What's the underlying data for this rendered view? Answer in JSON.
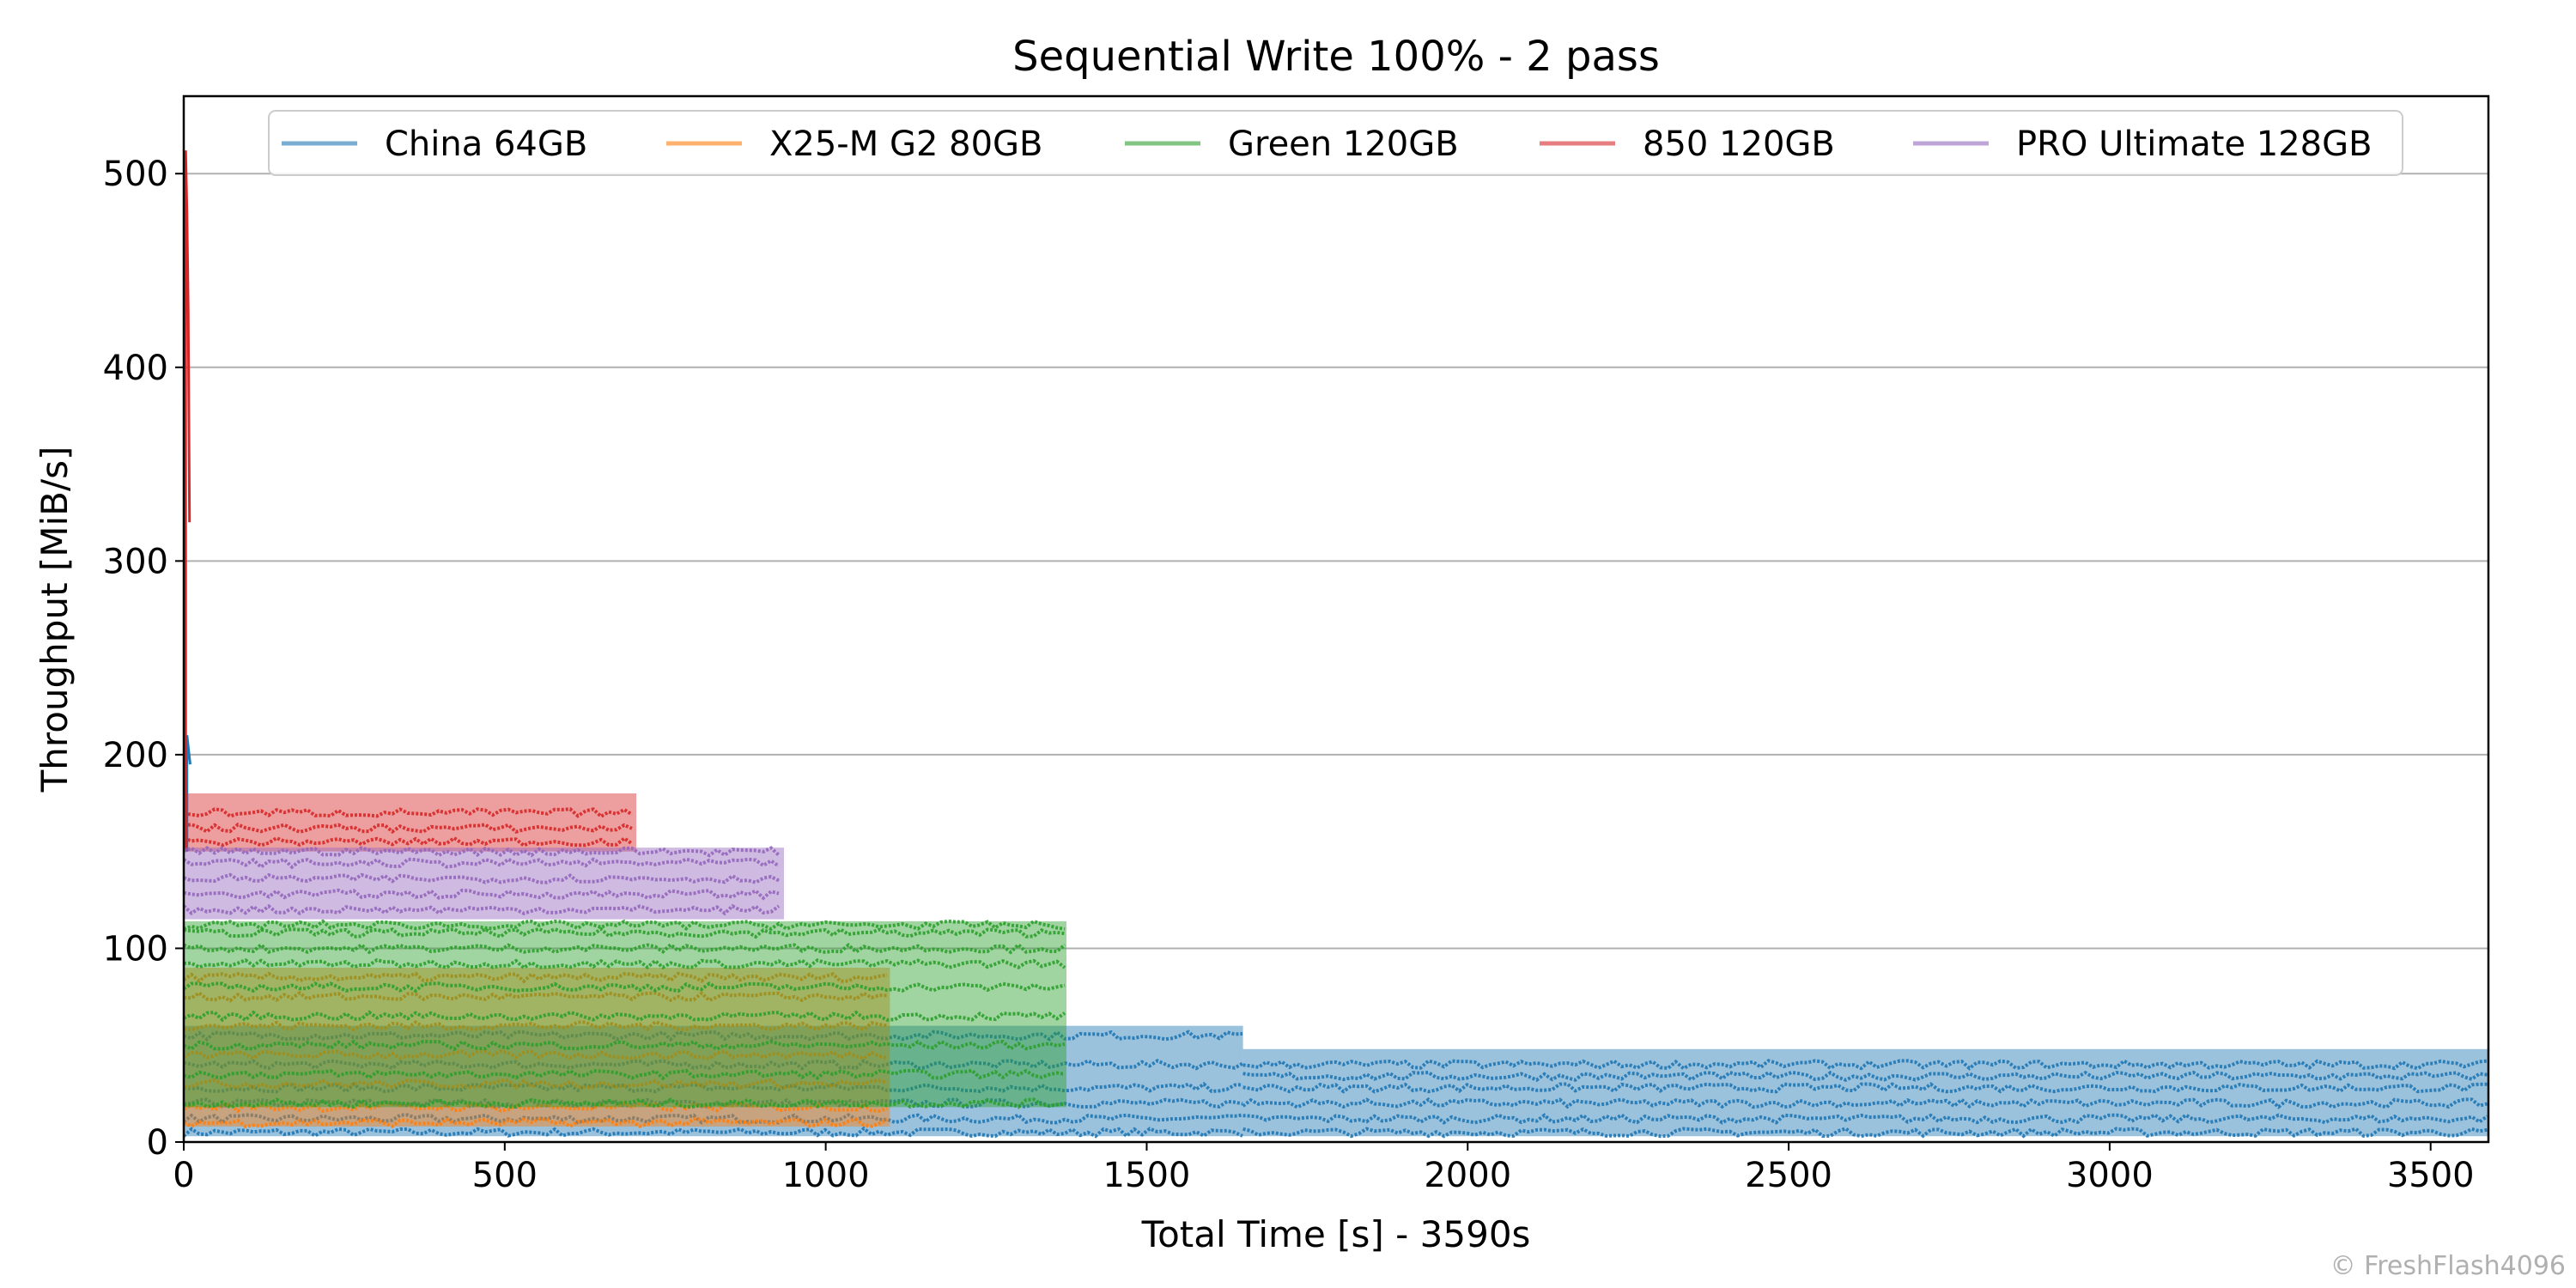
{
  "chart_data": {
    "type": "scatter",
    "title": "Sequential Write 100% - 2 pass",
    "xlabel": "Total Time [s] - 3590s",
    "ylabel": "Throughput [MiB/s]",
    "xlim": [
      0,
      3590
    ],
    "ylim": [
      0,
      540
    ],
    "xticks": [
      0,
      500,
      1000,
      1500,
      2000,
      2500,
      3000,
      3500
    ],
    "yticks": [
      0,
      100,
      200,
      300,
      400,
      500
    ],
    "grid": "horizontal",
    "legend_position": "top",
    "watermark": "© FreshFlash4096",
    "series": [
      {
        "name": "China 64GB",
        "color": "#1f77b4",
        "segments": [
          {
            "x_start": 0,
            "x_end": 1650,
            "bands": [
              5,
              12,
              20,
              28,
              40,
              55
            ],
            "lo": 3,
            "hi": 60
          },
          {
            "x_start": 1650,
            "x_end": 3590,
            "bands": [
              5,
              12,
              20,
              28,
              34,
              40
            ],
            "lo": 3,
            "hi": 48
          }
        ],
        "spikes": [
          [
            5,
            210
          ],
          [
            10,
            195
          ]
        ]
      },
      {
        "name": "X25-M G2 80GB",
        "color": "#ff7f0e",
        "segments": [
          {
            "x_start": 0,
            "x_end": 1100,
            "bands": [
              10,
              18,
              30,
              45,
              60,
              75,
              85
            ],
            "lo": 8,
            "hi": 90
          }
        ],
        "spikes": []
      },
      {
        "name": "Green 120GB",
        "color": "#2ca02c",
        "segments": [
          {
            "x_start": 0,
            "x_end": 1375,
            "bands": [
              20,
              35,
              50,
              65,
              80,
              92,
              100,
              108,
              112
            ],
            "lo": 18,
            "hi": 114
          }
        ],
        "spikes": []
      },
      {
        "name": "850 120GB",
        "color": "#d62728",
        "segments": [
          {
            "x_start": 0,
            "x_end": 705,
            "bands": [
              155,
              162,
              170
            ],
            "lo": 150,
            "hi": 180
          }
        ],
        "spikes": [
          [
            3,
            512
          ],
          [
            5,
            480
          ],
          [
            7,
            430
          ],
          [
            9,
            320
          ]
        ]
      },
      {
        "name": "PRO Ultimate 128GB",
        "color": "#9467bd",
        "segments": [
          {
            "x_start": 0,
            "x_end": 935,
            "bands": [
              120,
              128,
              136,
              144,
              150
            ],
            "lo": 115,
            "hi": 152
          }
        ],
        "spikes": []
      }
    ]
  }
}
